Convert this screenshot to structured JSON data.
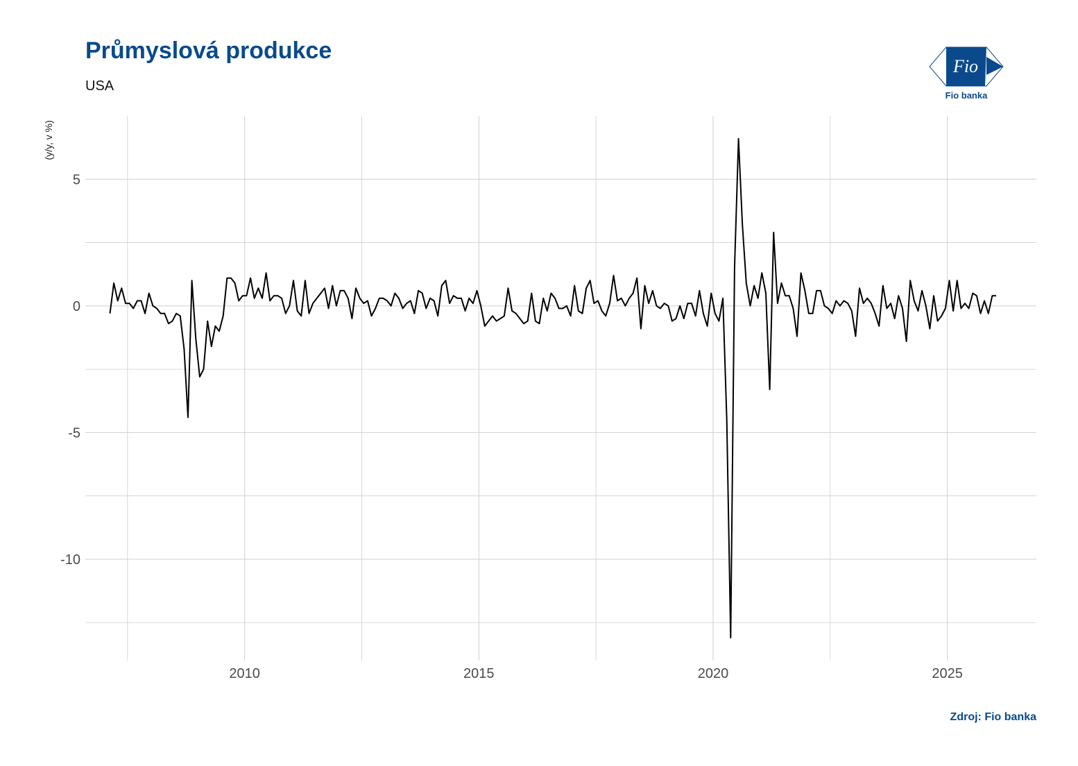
{
  "header": {
    "title": "Průmyslová produkce",
    "subtitle": "USA",
    "logo_text": "Fio banka",
    "logo_mark": "Fio"
  },
  "footer": {
    "source": "Zdroj: Fio banka"
  },
  "colors": {
    "brand": "#0a4a8c",
    "line": "#000000",
    "grid": "#cfcfcf"
  },
  "chart_data": {
    "type": "line",
    "title": "Průmyslová produkce",
    "subtitle": "USA",
    "xlabel": "",
    "ylabel": "(y/y, v %)",
    "xlim": [
      2006.6,
      2026.9
    ],
    "ylim": [
      -14.0,
      7.5
    ],
    "x_ticks": [
      2010,
      2015,
      2020,
      2025
    ],
    "y_ticks": [
      5,
      0,
      -5,
      -10
    ],
    "grid": true,
    "legend": "none",
    "series": [
      {
        "x_start": 2007.125,
        "x_step": 0.08333333,
        "values": [
          -0.3,
          0.9,
          0.2,
          0.7,
          0.1,
          0.1,
          -0.1,
          0.2,
          0.2,
          -0.3,
          0.5,
          0.0,
          -0.1,
          -0.3,
          -0.3,
          -0.7,
          -0.6,
          -0.3,
          -0.4,
          -1.7,
          -4.4,
          1.0,
          -1.3,
          -2.8,
          -2.5,
          -0.6,
          -1.6,
          -0.8,
          -1.0,
          -0.4,
          1.1,
          1.1,
          0.9,
          0.2,
          0.4,
          0.4,
          1.1,
          0.3,
          0.7,
          0.3,
          1.3,
          0.2,
          0.4,
          0.4,
          0.3,
          -0.3,
          0.0,
          1.0,
          -0.2,
          -0.4,
          1.0,
          -0.3,
          0.1,
          0.3,
          0.5,
          0.7,
          -0.1,
          0.8,
          0.0,
          0.6,
          0.6,
          0.3,
          -0.5,
          0.7,
          0.3,
          0.1,
          0.2,
          -0.4,
          -0.1,
          0.3,
          0.3,
          0.2,
          0.0,
          0.5,
          0.3,
          -0.1,
          0.1,
          0.2,
          -0.3,
          0.6,
          0.5,
          -0.1,
          0.3,
          0.2,
          -0.4,
          0.8,
          1.0,
          0.1,
          0.4,
          0.3,
          0.3,
          -0.2,
          0.3,
          0.1,
          0.6,
          0.0,
          -0.8,
          -0.6,
          -0.4,
          -0.6,
          -0.5,
          -0.4,
          0.7,
          -0.2,
          -0.3,
          -0.5,
          -0.7,
          -0.6,
          0.5,
          -0.6,
          -0.7,
          0.3,
          -0.2,
          0.5,
          0.3,
          -0.1,
          -0.1,
          0.0,
          -0.4,
          0.8,
          -0.2,
          -0.3,
          0.7,
          1.0,
          0.1,
          0.2,
          -0.2,
          -0.4,
          0.1,
          1.2,
          0.2,
          0.3,
          0.0,
          0.3,
          0.5,
          1.1,
          -0.9,
          0.8,
          0.1,
          0.6,
          0.0,
          -0.1,
          0.1,
          0.0,
          -0.6,
          -0.5,
          0.0,
          -0.5,
          0.1,
          0.1,
          -0.4,
          0.6,
          -0.3,
          -0.8,
          0.5,
          -0.3,
          -0.6,
          0.3,
          -4.5,
          -13.1,
          1.5,
          6.6,
          3.2,
          0.9,
          0.0,
          0.8,
          0.3,
          1.3,
          0.5,
          -3.3,
          2.9,
          0.1,
          0.9,
          0.4,
          0.4,
          -0.1,
          -1.2,
          1.3,
          0.6,
          -0.3,
          -0.3,
          0.6,
          0.6,
          0.0,
          -0.1,
          -0.3,
          0.2,
          0.0,
          0.2,
          0.1,
          -0.2,
          -1.2,
          0.7,
          0.1,
          0.3,
          0.1,
          -0.3,
          -0.8,
          0.8,
          -0.1,
          0.1,
          -0.5,
          0.4,
          -0.1,
          -1.4,
          1.0,
          0.2,
          -0.2,
          0.6,
          0.0,
          -0.9,
          0.4,
          -0.6,
          -0.4,
          -0.1,
          1.0,
          -0.2,
          1.0,
          -0.1,
          0.1,
          -0.1,
          0.5,
          0.4,
          -0.3,
          0.2,
          -0.3,
          0.4,
          0.4
        ]
      }
    ]
  }
}
